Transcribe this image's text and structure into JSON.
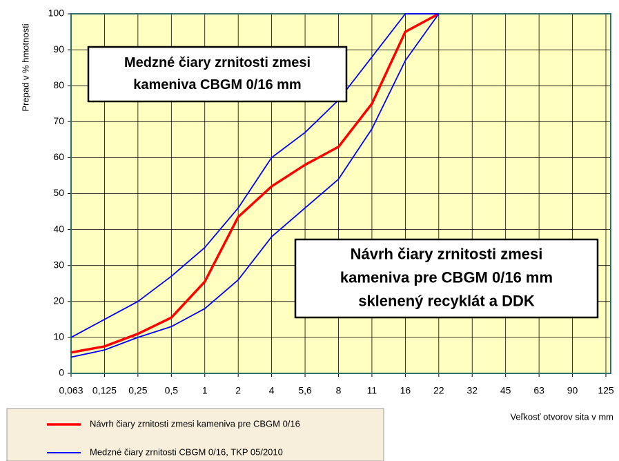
{
  "chart_data": {
    "type": "line",
    "y_label": "Prepad v % hmotnosti",
    "x_label": "Veľkosť otvorov sita v mm",
    "categories": [
      "0,063",
      "0,125",
      "0,25",
      "0,5",
      "1",
      "2",
      "4",
      "5,6",
      "8",
      "11",
      "16",
      "22",
      "32",
      "45",
      "63",
      "90",
      "125"
    ],
    "series": [
      {
        "name": "Návrh čiary zrnitosti zmesi kameniva pre CBGM 0/16",
        "color": "#ff0000",
        "values": [
          5.8,
          7.5,
          11,
          15.5,
          25.5,
          43.5,
          52,
          58,
          63,
          75,
          95,
          100,
          null,
          null,
          null,
          null,
          null
        ]
      },
      {
        "name": "Medzné čiary zrnitosti CBGM 0/16, TKP 05/2010",
        "color": "#0000ff",
        "values": [
          10,
          15,
          20,
          27,
          35,
          46,
          60,
          67,
          76,
          88,
          100,
          100,
          null,
          null,
          null,
          null,
          null
        ]
      },
      {
        "color": "#0000ff",
        "values": [
          4.5,
          6.5,
          10,
          13,
          18,
          26,
          38,
          46,
          54,
          68,
          87,
          100,
          null,
          null,
          null,
          null,
          null
        ]
      }
    ],
    "ylim": [
      0,
      100
    ],
    "yticks": [
      0,
      10,
      20,
      30,
      40,
      50,
      60,
      70,
      80,
      90,
      100
    ],
    "grid": true,
    "annotations": [
      {
        "lines": [
          "Medzné čiary zrnitosti zmesi",
          "kameniva CBGM 0/16 mm"
        ],
        "color": "#1010c0"
      },
      {
        "lines": [
          "Návrh čiary zrnitosti zmesi",
          "kameniva pre CBGM 0/16 mm",
          "sklenený recyklát a DDK"
        ],
        "color": "#ff0000"
      }
    ]
  }
}
